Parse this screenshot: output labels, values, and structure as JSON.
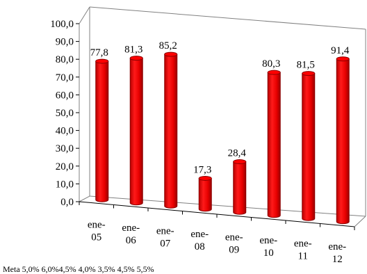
{
  "chart_data": {
    "type": "bar",
    "categories": [
      "ene-05",
      "ene-06",
      "ene-07",
      "ene-08",
      "ene-09",
      "ene-10",
      "ene-11",
      "ene-12"
    ],
    "category_lines": [
      [
        "ene-",
        "05"
      ],
      [
        "ene-",
        "06"
      ],
      [
        "ene-",
        "07"
      ],
      [
        "ene-",
        "08"
      ],
      [
        "ene-",
        "09"
      ],
      [
        "ene-",
        "10"
      ],
      [
        "ene-",
        "11"
      ],
      [
        "ene-",
        "12"
      ]
    ],
    "values": [
      77.8,
      81.3,
      85.2,
      17.3,
      28.4,
      80.3,
      81.5,
      91.4
    ],
    "data_labels": [
      "77,8",
      "81,3",
      "85,2",
      "17,3",
      "28,4",
      "80,3",
      "81,5",
      "91,4"
    ],
    "yticks": [
      "0,0",
      "10,0",
      "20,0",
      "30,0",
      "40,0",
      "50,0",
      "60,0",
      "70,0",
      "80,0",
      "90,0",
      "100,0"
    ],
    "ylim": [
      0,
      100
    ],
    "grid": false,
    "bar_color": "#ff0000",
    "bar_edge_color": "#8a0000",
    "title": "",
    "xlabel": "",
    "ylabel": ""
  },
  "meta_row": "Meta 5,0% 6,0%4,5%         4,0%          3,5%           4,5%  5,5%"
}
